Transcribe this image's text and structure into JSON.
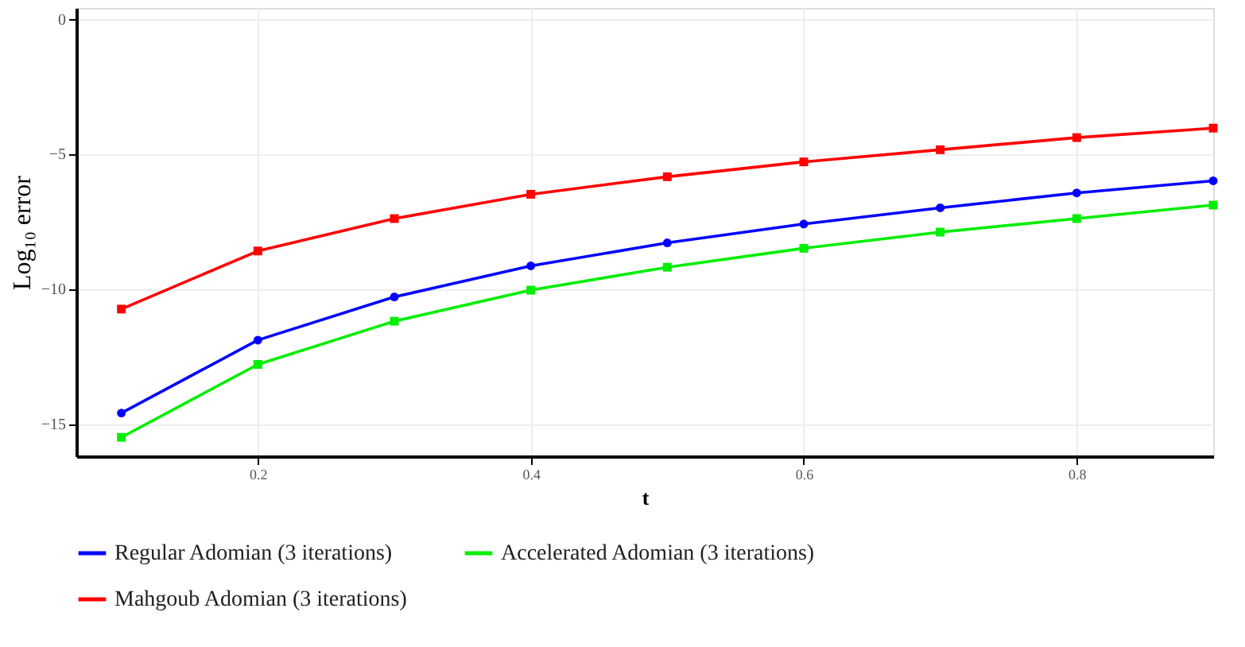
{
  "chart_data": {
    "type": "line",
    "xlabel": "t",
    "ylabel": "Log₁₀ error",
    "x": [
      0.1,
      0.2,
      0.3,
      0.4,
      0.5,
      0.6,
      0.7,
      0.8,
      0.9
    ],
    "series": [
      {
        "name": "Regular Adomian (3 iterations)",
        "color": "#0000ff",
        "marker": "circle",
        "values": [
          -14.6,
          -11.9,
          -10.3,
          -9.15,
          -8.3,
          -7.6,
          -7.0,
          -6.45,
          -6.0
        ]
      },
      {
        "name": "Accelerated Adomian (3 iterations)",
        "color": "#00ee00",
        "marker": "square",
        "values": [
          -15.5,
          -12.8,
          -11.2,
          -10.05,
          -9.2,
          -8.5,
          -7.9,
          -7.4,
          -6.9
        ]
      },
      {
        "name": "Mahgoub Adomian (3 iterations)",
        "color": "#ff0000",
        "marker": "square",
        "values": [
          -10.75,
          -8.6,
          -7.4,
          -6.5,
          -5.85,
          -5.3,
          -4.85,
          -4.4,
          -4.05
        ]
      }
    ],
    "xlim": [
      0.067,
      0.9
    ],
    "ylim": [
      -16.2,
      0.4
    ],
    "xticks": [
      0.2,
      0.4,
      0.6,
      0.8
    ],
    "yticks": [
      0,
      -5,
      -10,
      -15
    ],
    "grid": true,
    "legend": "bottom",
    "line_style": "solid"
  }
}
